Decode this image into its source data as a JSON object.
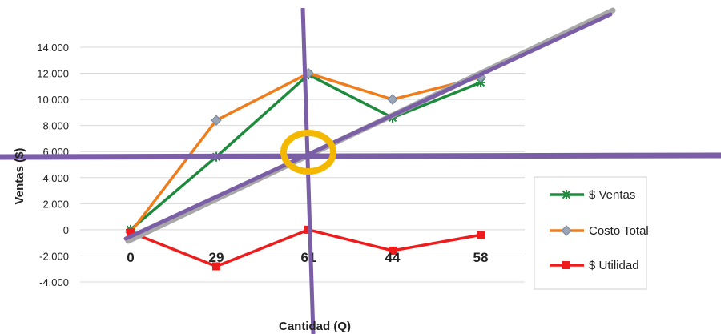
{
  "chart_data": {
    "type": "line",
    "categories": [
      "0",
      "29",
      "61",
      "44",
      "58"
    ],
    "series": [
      {
        "name": "$ Ventas",
        "values": [
          0,
          5600,
          11900,
          8600,
          11300
        ],
        "color": "#1e8a3c",
        "marker": "asterisk"
      },
      {
        "name": "Costo Total",
        "values": [
          -200,
          8400,
          12000,
          10000,
          11700
        ],
        "color": "#f07d1c",
        "marker": "diamond"
      },
      {
        "name": "$ Utilidad",
        "values": [
          -200,
          -2800,
          0,
          -1600,
          -400
        ],
        "color": "#ee1c1c",
        "marker": "square"
      }
    ],
    "xlabel": "Cantidad (Q)",
    "ylabel": "Ventas ($)",
    "ylim": [
      -4000,
      14000
    ],
    "yticks": [
      14000,
      12000,
      10000,
      8000,
      6000,
      4000,
      2000,
      0,
      -2000,
      -4000
    ],
    "ytick_labels": [
      "14.000",
      "12.000",
      "10.000",
      "8.000",
      "6.000",
      "4.000",
      "2.000",
      "0",
      "-2.000",
      "-4.000"
    ],
    "grid": "horizontal",
    "legend": "bottom-right",
    "annotations": {
      "line_color": "#7a5ea6",
      "diagonal_shadow_color": "#a8a8a8",
      "circle_color": "#f5b800"
    }
  }
}
